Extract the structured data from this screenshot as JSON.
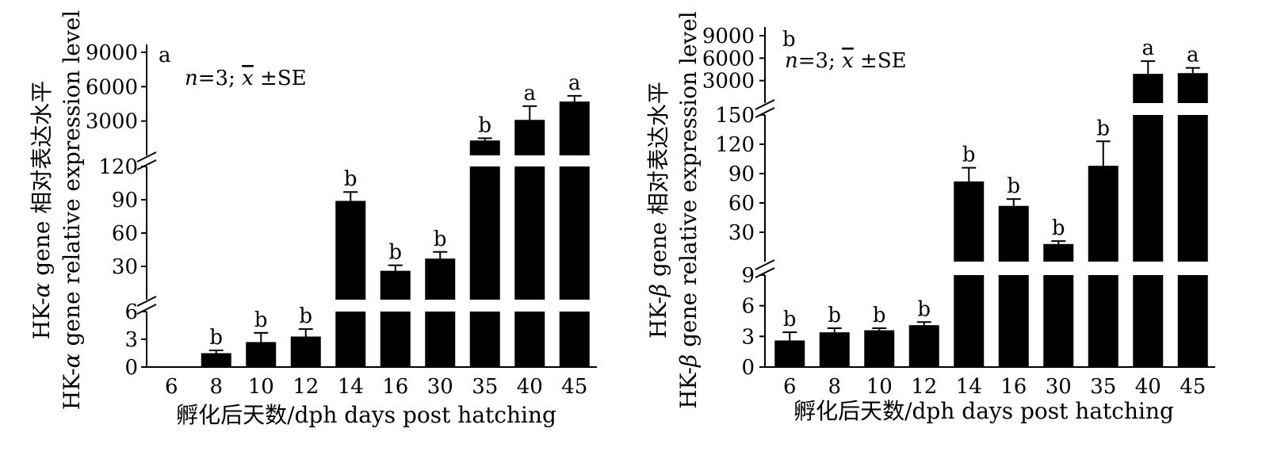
{
  "chart_data": [
    {
      "type": "bar",
      "panel": "a",
      "stats_note": {
        "n_italic": "n",
        "n_rest": "=3; ",
        "xbar": "x",
        "rest": " ±SE"
      },
      "ylabel_cn": {
        "prefix": "HK-",
        "greek": "α",
        "suffix": " gene 相对表达水平"
      },
      "ylabel_en": {
        "prefix": "HK-",
        "greek": "α",
        "suffix": " gene relative expression level"
      },
      "xlabel": "孵化后天数/dph days post hatching",
      "categories": [
        "6",
        "8",
        "10",
        "12",
        "14",
        "16",
        "30",
        "35",
        "40",
        "45"
      ],
      "values": [
        0,
        1.5,
        2.7,
        3.3,
        89,
        26,
        37,
        1300,
        3100,
        4700
      ],
      "errors": [
        0,
        0.3,
        1.0,
        0.8,
        8,
        5,
        6,
        200,
        1200,
        500
      ],
      "significance": [
        "",
        "b",
        "b",
        "b",
        "b",
        "b",
        "b",
        "b",
        "a",
        "a"
      ],
      "y_segments": [
        {
          "range": [
            0,
            6
          ],
          "ticks": [
            "0",
            "3",
            "6"
          ]
        },
        {
          "range": [
            0,
            120
          ],
          "ticks": [
            "30",
            "60",
            "90",
            "120"
          ]
        },
        {
          "range": [
            0,
            9000
          ],
          "ticks": [
            "3000",
            "6000",
            "9000"
          ]
        }
      ],
      "axis_break": true,
      "grid": false,
      "bar_color": "#000000"
    },
    {
      "type": "bar",
      "panel": "b",
      "stats_note": {
        "n_italic": "n",
        "n_rest": "=3; ",
        "xbar": "x",
        "rest": " ±SE"
      },
      "ylabel_cn": {
        "prefix": "HK-",
        "greek": "β",
        "suffix": " gene 相对表达水平"
      },
      "ylabel_en": {
        "prefix": "HK-",
        "greek": "β",
        "suffix": " gene relative expression level"
      },
      "xlabel": "孵化后天数/dph days post hatching",
      "categories": [
        "6",
        "8",
        "10",
        "12",
        "14",
        "16",
        "30",
        "35",
        "40",
        "45"
      ],
      "values": [
        2.6,
        3.4,
        3.6,
        4.1,
        82,
        57,
        18,
        98,
        3900,
        4000
      ],
      "errors": [
        0.8,
        0.4,
        0.2,
        0.3,
        14,
        7,
        3,
        25,
        1700,
        700
      ],
      "significance": [
        "b",
        "b",
        "b",
        "b",
        "b",
        "b",
        "b",
        "b",
        "a",
        "a"
      ],
      "y_segments": [
        {
          "range": [
            0,
            9
          ],
          "ticks": [
            "0",
            "3",
            "6",
            "9"
          ]
        },
        {
          "range": [
            0,
            150
          ],
          "ticks": [
            "30",
            "60",
            "90",
            "120",
            "150"
          ]
        },
        {
          "range": [
            0,
            9000
          ],
          "ticks": [
            "3000",
            "6000",
            "9000"
          ]
        }
      ],
      "axis_break": true,
      "grid": false,
      "bar_color": "#000000"
    }
  ]
}
